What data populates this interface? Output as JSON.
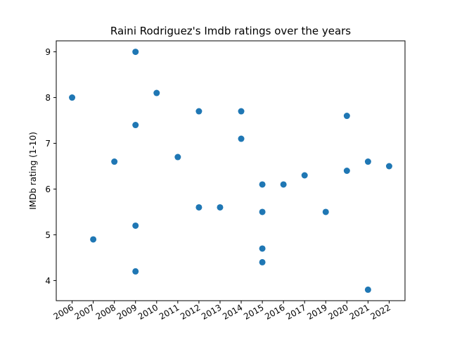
{
  "chart_data": {
    "type": "scatter",
    "title": "Raini Rodriguez's Imdb ratings over the years",
    "xlabel": "",
    "ylabel": "IMDb rating (1-10)",
    "x_categories": [
      "2006",
      "2007",
      "2008",
      "2009",
      "2010",
      "2011",
      "2012",
      "2013",
      "2014",
      "2015",
      "2016",
      "2017",
      "2019",
      "2020",
      "2021",
      "2022"
    ],
    "yticks": [
      4,
      5,
      6,
      7,
      8,
      9
    ],
    "ylim": [
      3.56,
      9.24
    ],
    "grid": false,
    "color": "#1f77b4",
    "points": [
      {
        "x": "2006",
        "y": 8.0
      },
      {
        "x": "2007",
        "y": 4.9
      },
      {
        "x": "2008",
        "y": 6.6
      },
      {
        "x": "2009",
        "y": 9.0
      },
      {
        "x": "2009",
        "y": 7.4
      },
      {
        "x": "2009",
        "y": 5.2
      },
      {
        "x": "2009",
        "y": 4.2
      },
      {
        "x": "2010",
        "y": 8.1
      },
      {
        "x": "2011",
        "y": 6.7
      },
      {
        "x": "2012",
        "y": 7.7
      },
      {
        "x": "2012",
        "y": 5.6
      },
      {
        "x": "2013",
        "y": 5.6
      },
      {
        "x": "2014",
        "y": 7.7
      },
      {
        "x": "2014",
        "y": 7.1
      },
      {
        "x": "2015",
        "y": 6.1
      },
      {
        "x": "2015",
        "y": 5.5
      },
      {
        "x": "2015",
        "y": 4.7
      },
      {
        "x": "2015",
        "y": 4.4
      },
      {
        "x": "2016",
        "y": 6.1
      },
      {
        "x": "2017",
        "y": 6.3
      },
      {
        "x": "2019",
        "y": 5.5
      },
      {
        "x": "2020",
        "y": 7.6
      },
      {
        "x": "2020",
        "y": 6.4
      },
      {
        "x": "2021",
        "y": 6.6
      },
      {
        "x": "2021",
        "y": 3.8
      },
      {
        "x": "2022",
        "y": 6.5
      }
    ]
  }
}
